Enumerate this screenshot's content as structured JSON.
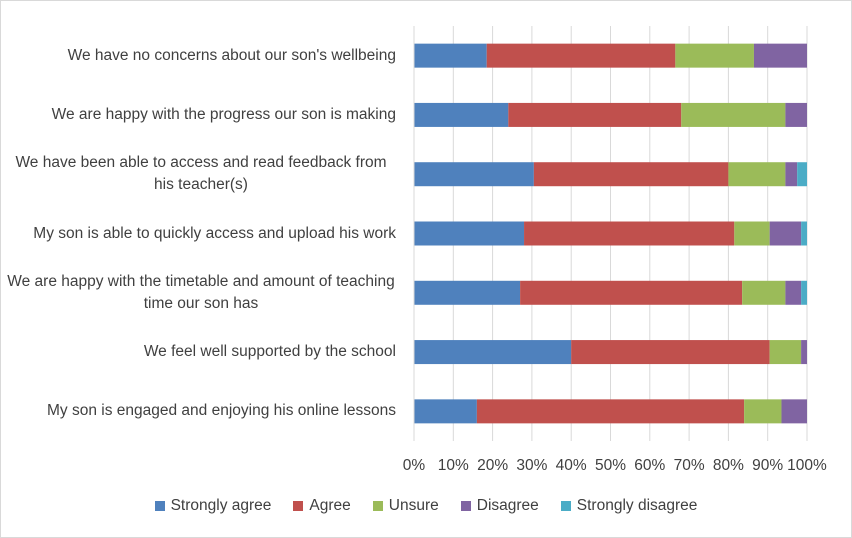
{
  "chart_data": {
    "type": "stacked-barh",
    "categories": [
      "We have no concerns about our son's wellbeing",
      "We are happy with the progress our son is making",
      "We have been able to access and read feedback from his teacher(s)",
      "My son is able to quickly access and upload his work",
      "We are happy with the timetable and amount of teaching time our son has",
      "We feel well supported by the school",
      "My son is engaged and enjoying his online lessons"
    ],
    "series": [
      {
        "name": "Strongly agree",
        "color": "#4f81bd",
        "values": [
          18.5,
          24,
          30.5,
          28,
          27,
          40,
          16
        ]
      },
      {
        "name": "Agree",
        "color": "#c0504d",
        "values": [
          48,
          44,
          49.5,
          53.5,
          56.5,
          50.5,
          68
        ]
      },
      {
        "name": "Unsure",
        "color": "#9bbb59",
        "values": [
          20,
          26.5,
          14.5,
          9,
          11,
          8,
          9.5
        ]
      },
      {
        "name": "Disagree",
        "color": "#8064a2",
        "values": [
          13.5,
          5.5,
          3,
          8,
          4,
          1.5,
          6.5
        ]
      },
      {
        "name": "Strongly disagree",
        "color": "#4bacc6",
        "values": [
          0,
          0,
          2.5,
          1.5,
          1.5,
          0,
          0
        ]
      }
    ],
    "xlim": [
      0,
      100
    ],
    "xticks": [
      {
        "value": 0,
        "label": "0%"
      },
      {
        "value": 10,
        "label": "10%"
      },
      {
        "value": 20,
        "label": "20%"
      },
      {
        "value": 30,
        "label": "30%"
      },
      {
        "value": 40,
        "label": "40%"
      },
      {
        "value": 50,
        "label": "50%"
      },
      {
        "value": 60,
        "label": "60%"
      },
      {
        "value": 70,
        "label": "70%"
      },
      {
        "value": 80,
        "label": "80%"
      },
      {
        "value": 90,
        "label": "90%"
      },
      {
        "value": 100,
        "label": "100%"
      }
    ],
    "grid": true,
    "legend": "bottom"
  }
}
